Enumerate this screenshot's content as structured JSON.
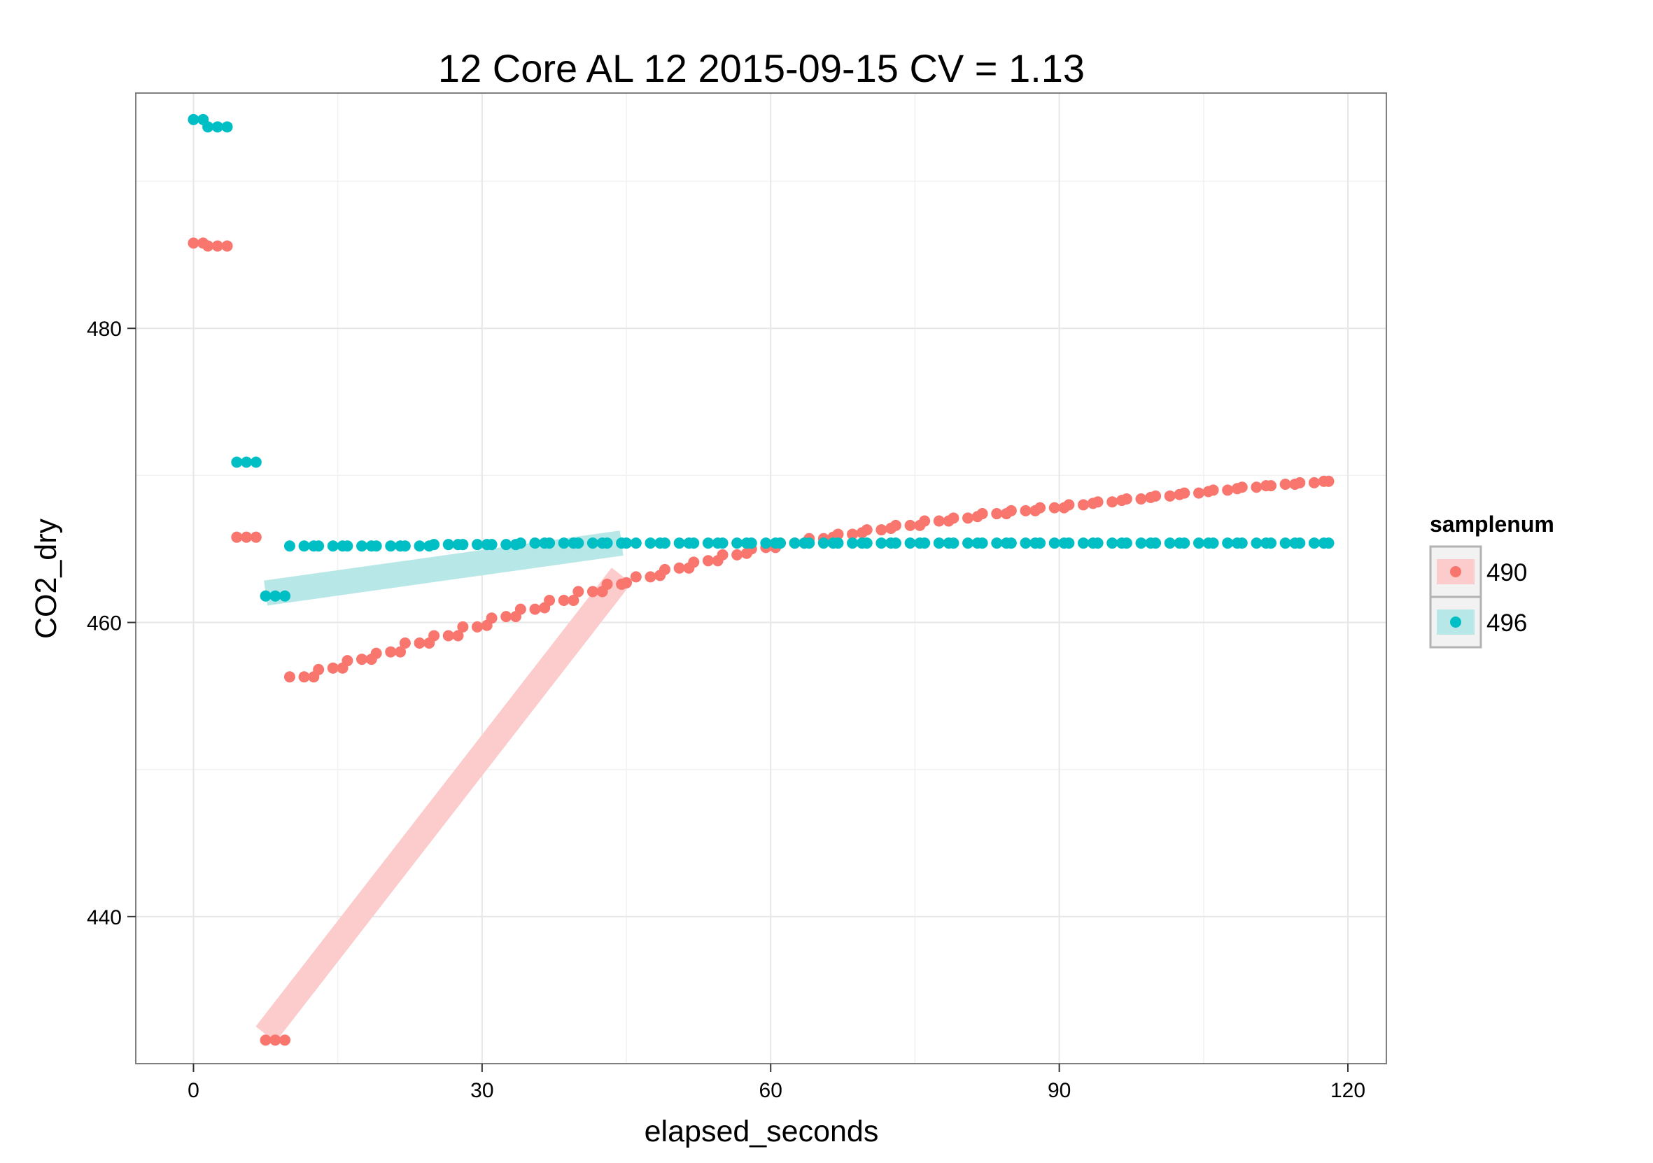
{
  "chart_data": {
    "type": "scatter",
    "title": "12 Core AL 12 2015-09-15 CV = 1.13",
    "xlabel": "elapsed_seconds",
    "ylabel": "CO2_dry",
    "xlim": [
      -6,
      124
    ],
    "ylim": [
      430,
      496
    ],
    "x_ticks": [
      0,
      30,
      60,
      90,
      120
    ],
    "y_ticks": [
      440,
      460,
      480
    ],
    "grid": true,
    "legend": {
      "title": "samplenum",
      "position": "right"
    },
    "series": [
      {
        "name": "490",
        "color": "#F8766D",
        "fit_line": {
          "x": [
            7.5,
            44.5
          ],
          "y": [
            432.0,
            463.2
          ],
          "band_color": "#FCCBCB"
        },
        "points": [
          [
            0,
            485.8
          ],
          [
            1,
            485.8
          ],
          [
            1.5,
            485.6
          ],
          [
            2.5,
            485.6
          ],
          [
            3.5,
            485.6
          ],
          [
            4.5,
            465.8
          ],
          [
            5.5,
            465.8
          ],
          [
            6.5,
            465.8
          ],
          [
            7.5,
            431.6
          ],
          [
            8.5,
            431.6
          ],
          [
            9.5,
            431.6
          ],
          [
            10,
            456.3
          ],
          [
            11.5,
            456.3
          ],
          [
            12.5,
            456.3
          ],
          [
            13,
            456.8
          ],
          [
            14.5,
            456.9
          ],
          [
            15.5,
            456.9
          ],
          [
            16,
            457.4
          ],
          [
            17.5,
            457.5
          ],
          [
            18.5,
            457.5
          ],
          [
            19,
            457.9
          ],
          [
            20.5,
            458.0
          ],
          [
            21.5,
            458.0
          ],
          [
            22,
            458.6
          ],
          [
            23.5,
            458.6
          ],
          [
            24.5,
            458.6
          ],
          [
            25,
            459.1
          ],
          [
            26.5,
            459.1
          ],
          [
            27.5,
            459.1
          ],
          [
            28,
            459.7
          ],
          [
            29.5,
            459.7
          ],
          [
            30.5,
            459.8
          ],
          [
            31,
            460.3
          ],
          [
            32.5,
            460.4
          ],
          [
            33.5,
            460.4
          ],
          [
            34,
            460.9
          ],
          [
            35.5,
            460.9
          ],
          [
            36.5,
            461.0
          ],
          [
            37,
            461.5
          ],
          [
            38.5,
            461.5
          ],
          [
            39.5,
            461.5
          ],
          [
            40,
            462.1
          ],
          [
            41.5,
            462.1
          ],
          [
            42.5,
            462.1
          ],
          [
            43,
            462.6
          ],
          [
            44.5,
            462.6
          ],
          [
            45,
            462.7
          ],
          [
            46,
            463.1
          ],
          [
            47.5,
            463.1
          ],
          [
            48.5,
            463.2
          ],
          [
            49,
            463.6
          ],
          [
            50.5,
            463.7
          ],
          [
            51.5,
            463.7
          ],
          [
            52,
            464.1
          ],
          [
            53.5,
            464.2
          ],
          [
            54.5,
            464.2
          ],
          [
            55,
            464.6
          ],
          [
            56.5,
            464.6
          ],
          [
            57.5,
            464.7
          ],
          [
            58,
            465.0
          ],
          [
            59.5,
            465.1
          ],
          [
            60.5,
            465.1
          ],
          [
            61,
            465.4
          ],
          [
            62.5,
            465.4
          ],
          [
            63.5,
            465.4
          ],
          [
            64,
            465.7
          ],
          [
            65.5,
            465.7
          ],
          [
            66.5,
            465.8
          ],
          [
            67,
            466.0
          ],
          [
            68.5,
            466.0
          ],
          [
            69.5,
            466.1
          ],
          [
            70,
            466.3
          ],
          [
            71.5,
            466.3
          ],
          [
            72.5,
            466.4
          ],
          [
            73,
            466.6
          ],
          [
            74.5,
            466.6
          ],
          [
            75.5,
            466.6
          ],
          [
            76,
            466.9
          ],
          [
            77.5,
            466.9
          ],
          [
            78.5,
            466.9
          ],
          [
            79,
            467.1
          ],
          [
            80.5,
            467.1
          ],
          [
            81.5,
            467.2
          ],
          [
            82,
            467.4
          ],
          [
            83.5,
            467.4
          ],
          [
            84.5,
            467.4
          ],
          [
            85,
            467.6
          ],
          [
            86.5,
            467.6
          ],
          [
            87.5,
            467.6
          ],
          [
            88,
            467.8
          ],
          [
            89.5,
            467.8
          ],
          [
            90.5,
            467.8
          ],
          [
            91,
            468.0
          ],
          [
            92.5,
            468.0
          ],
          [
            93.5,
            468.1
          ],
          [
            94,
            468.2
          ],
          [
            95.5,
            468.2
          ],
          [
            96.5,
            468.3
          ],
          [
            97,
            468.4
          ],
          [
            98.5,
            468.4
          ],
          [
            99.5,
            468.5
          ],
          [
            100,
            468.6
          ],
          [
            101.5,
            468.6
          ],
          [
            102.5,
            468.7
          ],
          [
            103,
            468.8
          ],
          [
            104.5,
            468.8
          ],
          [
            105.5,
            468.9
          ],
          [
            106,
            469.0
          ],
          [
            107.5,
            469.0
          ],
          [
            108.5,
            469.1
          ],
          [
            109,
            469.2
          ],
          [
            110.5,
            469.2
          ],
          [
            111.5,
            469.3
          ],
          [
            112,
            469.3
          ],
          [
            113.5,
            469.4
          ],
          [
            114.5,
            469.4
          ],
          [
            115,
            469.5
          ],
          [
            116.5,
            469.5
          ],
          [
            117.5,
            469.6
          ],
          [
            118,
            469.6
          ]
        ]
      },
      {
        "name": "496",
        "color": "#00BFC4",
        "fit_line": {
          "x": [
            7.5,
            44.5
          ],
          "y": [
            462.0,
            465.4
          ],
          "band_color": "#B8E7E8"
        },
        "points": [
          [
            0,
            494.2
          ],
          [
            1,
            494.2
          ],
          [
            1.5,
            493.7
          ],
          [
            2.5,
            493.7
          ],
          [
            3.5,
            493.7
          ],
          [
            4.5,
            470.9
          ],
          [
            5.5,
            470.9
          ],
          [
            6.5,
            470.9
          ],
          [
            7.5,
            461.8
          ],
          [
            8.5,
            461.8
          ],
          [
            9.5,
            461.8
          ],
          [
            10,
            465.2
          ],
          [
            11.5,
            465.2
          ],
          [
            12.5,
            465.2
          ],
          [
            13,
            465.2
          ],
          [
            14.5,
            465.2
          ],
          [
            15.5,
            465.2
          ],
          [
            16,
            465.2
          ],
          [
            17.5,
            465.2
          ],
          [
            18.5,
            465.2
          ],
          [
            19,
            465.2
          ],
          [
            20.5,
            465.2
          ],
          [
            21.5,
            465.2
          ],
          [
            22,
            465.2
          ],
          [
            23.5,
            465.2
          ],
          [
            24.5,
            465.2
          ],
          [
            25,
            465.3
          ],
          [
            26.5,
            465.3
          ],
          [
            27.5,
            465.3
          ],
          [
            28,
            465.3
          ],
          [
            29.5,
            465.3
          ],
          [
            30.5,
            465.3
          ],
          [
            31,
            465.3
          ],
          [
            32.5,
            465.3
          ],
          [
            33.5,
            465.3
          ],
          [
            34,
            465.4
          ],
          [
            35.5,
            465.4
          ],
          [
            36.5,
            465.4
          ],
          [
            37,
            465.4
          ],
          [
            38.5,
            465.4
          ],
          [
            39.5,
            465.4
          ],
          [
            40,
            465.4
          ],
          [
            41.5,
            465.4
          ],
          [
            42.5,
            465.4
          ],
          [
            43,
            465.4
          ],
          [
            44.5,
            465.4
          ],
          [
            45,
            465.4
          ],
          [
            46,
            465.4
          ],
          [
            47.5,
            465.4
          ],
          [
            48.5,
            465.4
          ],
          [
            49,
            465.4
          ],
          [
            50.5,
            465.4
          ],
          [
            51.5,
            465.4
          ],
          [
            52,
            465.4
          ],
          [
            53.5,
            465.4
          ],
          [
            54.5,
            465.4
          ],
          [
            55,
            465.4
          ],
          [
            56.5,
            465.4
          ],
          [
            57.5,
            465.4
          ],
          [
            58,
            465.4
          ],
          [
            59.5,
            465.4
          ],
          [
            60.5,
            465.4
          ],
          [
            61,
            465.4
          ],
          [
            62.5,
            465.4
          ],
          [
            63.5,
            465.4
          ],
          [
            64,
            465.4
          ],
          [
            65.5,
            465.4
          ],
          [
            66.5,
            465.4
          ],
          [
            67,
            465.4
          ],
          [
            68.5,
            465.4
          ],
          [
            69.5,
            465.4
          ],
          [
            70,
            465.4
          ],
          [
            71.5,
            465.4
          ],
          [
            72.5,
            465.4
          ],
          [
            73,
            465.4
          ],
          [
            74.5,
            465.4
          ],
          [
            75.5,
            465.4
          ],
          [
            76,
            465.4
          ],
          [
            77.5,
            465.4
          ],
          [
            78.5,
            465.4
          ],
          [
            79,
            465.4
          ],
          [
            80.5,
            465.4
          ],
          [
            81.5,
            465.4
          ],
          [
            82,
            465.4
          ],
          [
            83.5,
            465.4
          ],
          [
            84.5,
            465.4
          ],
          [
            85,
            465.4
          ],
          [
            86.5,
            465.4
          ],
          [
            87.5,
            465.4
          ],
          [
            88,
            465.4
          ],
          [
            89.5,
            465.4
          ],
          [
            90.5,
            465.4
          ],
          [
            91,
            465.4
          ],
          [
            92.5,
            465.4
          ],
          [
            93.5,
            465.4
          ],
          [
            94,
            465.4
          ],
          [
            95.5,
            465.4
          ],
          [
            96.5,
            465.4
          ],
          [
            97,
            465.4
          ],
          [
            98.5,
            465.4
          ],
          [
            99.5,
            465.4
          ],
          [
            100,
            465.4
          ],
          [
            101.5,
            465.4
          ],
          [
            102.5,
            465.4
          ],
          [
            103,
            465.4
          ],
          [
            104.5,
            465.4
          ],
          [
            105.5,
            465.4
          ],
          [
            106,
            465.4
          ],
          [
            107.5,
            465.4
          ],
          [
            108.5,
            465.4
          ],
          [
            109,
            465.4
          ],
          [
            110.5,
            465.4
          ],
          [
            111.5,
            465.4
          ],
          [
            112,
            465.4
          ],
          [
            113.5,
            465.4
          ],
          [
            114.5,
            465.4
          ],
          [
            115,
            465.4
          ],
          [
            116.5,
            465.4
          ],
          [
            117.5,
            465.4
          ],
          [
            118,
            465.4
          ]
        ]
      }
    ]
  }
}
